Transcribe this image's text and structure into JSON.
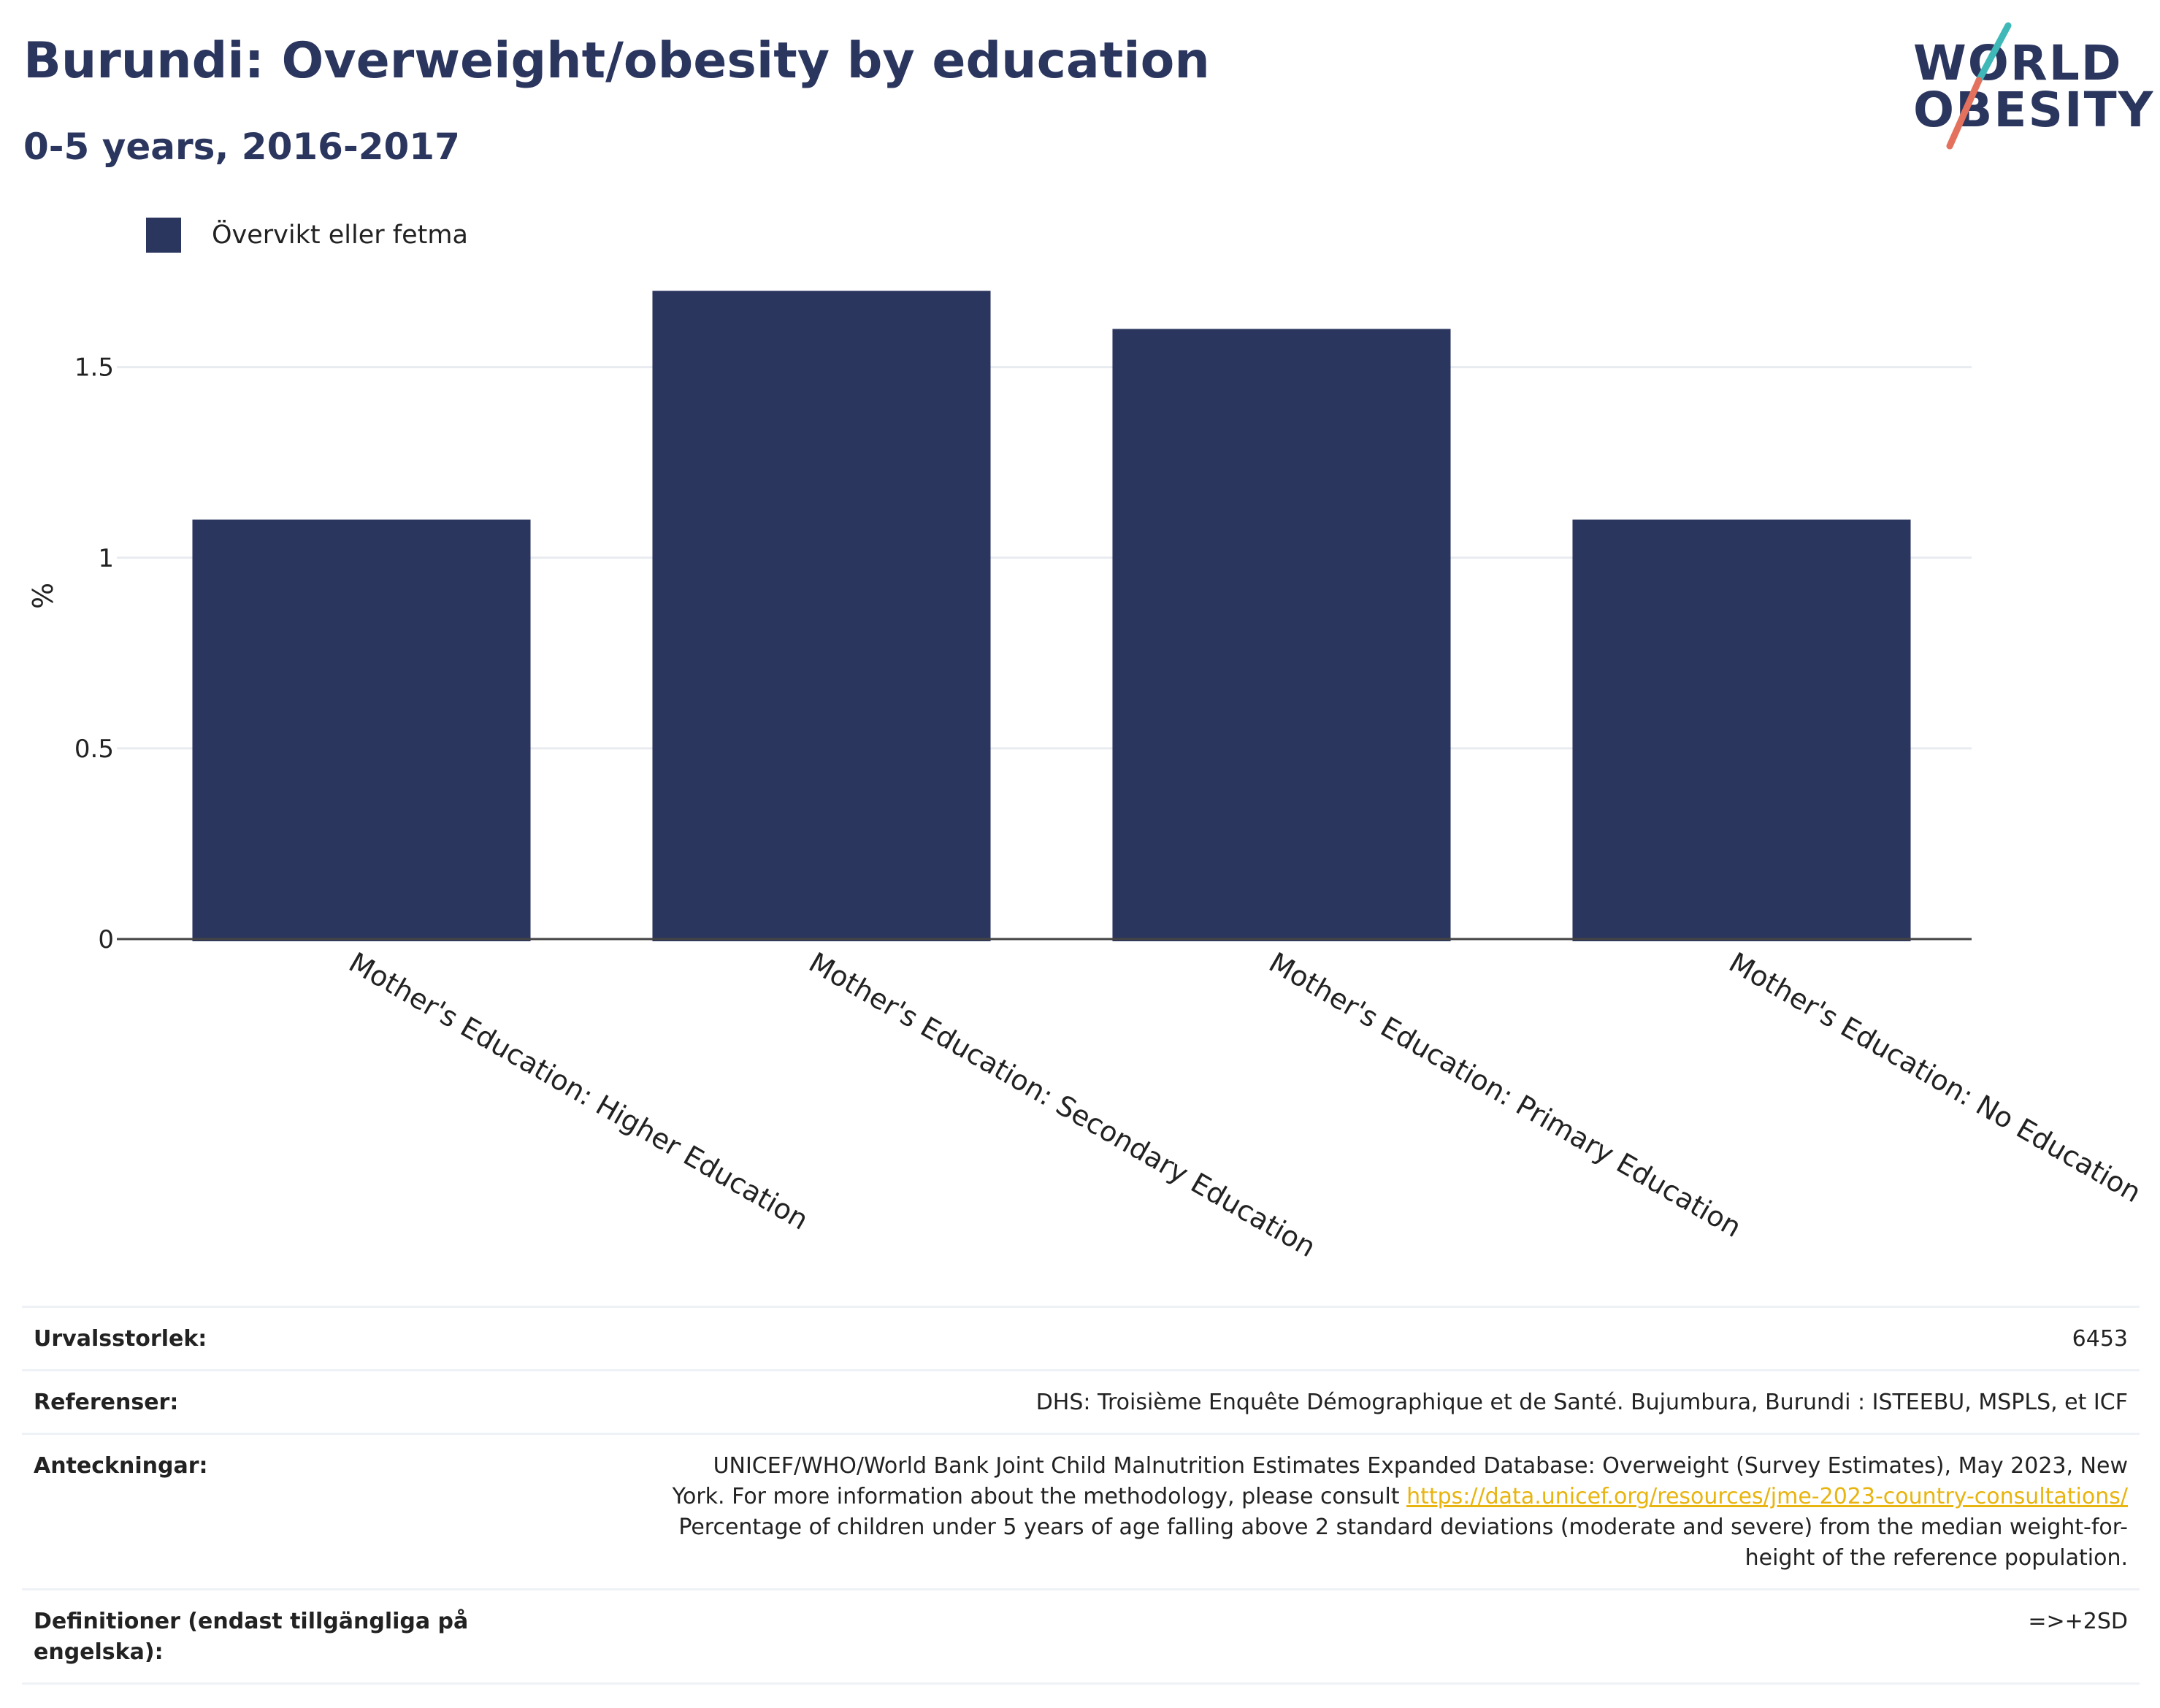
{
  "header": {
    "title": "Burundi: Overweight/obesity by education",
    "subtitle": "0-5 years, 2016-2017"
  },
  "logo": {
    "line1": "WORLD",
    "line2": "OBESITY",
    "accent_teal": "#3fb9b8",
    "accent_red": "#e4715d"
  },
  "legend": {
    "label": "Övervikt eller fetma"
  },
  "colors": {
    "bar": "#2b365f",
    "grid": "#e8ebf0",
    "axis": "#444444",
    "text": "#222222",
    "title": "#2b365f",
    "link": "#e8b40f"
  },
  "chart_data": {
    "type": "bar",
    "title": "Burundi: Overweight/obesity by education",
    "subtitle": "0-5 years, 2016-2017",
    "categories": [
      "Mother's Education: Higher Education",
      "Mother's Education: Secondary Education",
      "Mother's Education: Primary Education",
      "Mother's Education: No Education"
    ],
    "series": [
      {
        "name": "Övervikt eller fetma",
        "values": [
          1.1,
          1.7,
          1.6,
          1.1
        ]
      }
    ],
    "xlabel": "",
    "ylabel": "%",
    "ylim": [
      0,
      1.8
    ],
    "yticks": [
      0,
      0.5,
      1,
      1.5
    ],
    "ytick_labels": [
      "0",
      "0.5",
      "1",
      "1.5"
    ],
    "grid": true,
    "legend_position": "top-left"
  },
  "info": {
    "sample_size_label": "Urvalsstorlek:",
    "sample_size_value": "6453",
    "references_label": "Referenser:",
    "references_value": "DHS: Troisième Enquête Démographique et de Santé. Bujumbura, Burundi : ISTEEBU, MSPLS, et ICF",
    "notes_label": "Anteckningar:",
    "notes_line1": "UNICEF/WHO/World Bank Joint Child Malnutrition Estimates Expanded Database: Overweight (Survey Estimates), May 2023, New",
    "notes_line2_prefix": "York. For more information about the methodology, please consult",
    "notes_link": "https://data.unicef.org/resources/jme-2023-country-consultations/",
    "notes_line3": "Percentage of children under 5 years of age falling above 2 standard deviations (moderate and severe) from the median weight-for-",
    "notes_line4": "height of the reference population.",
    "definitions_label_line1": "Definitioner (endast tillgängliga på",
    "definitions_label_line2": "engelska):",
    "definitions_value": "=>+2SD"
  }
}
